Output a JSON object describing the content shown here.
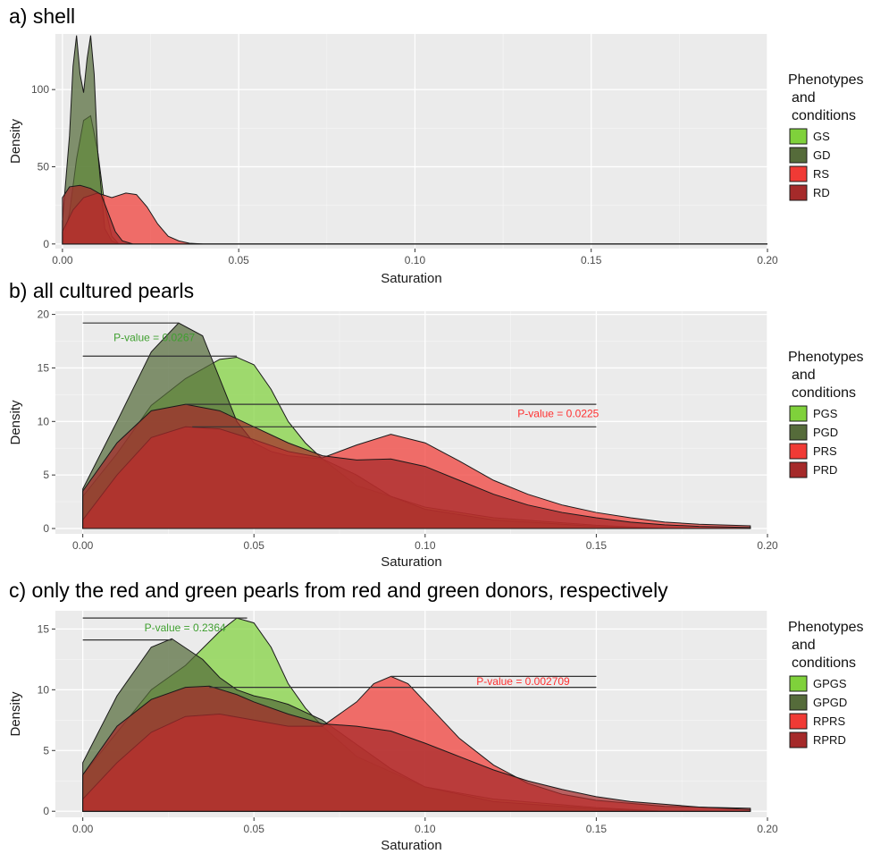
{
  "colors": {
    "panel_bg": "#ebebeb",
    "grid_major": "#ffffff",
    "green_light": "#7fd13b",
    "green_dark": "#556b3a",
    "red_light": "#f03a35",
    "red_dark": "#a52a2a",
    "pval_green": "#3f9f2f",
    "pval_red": "#ff3030"
  },
  "chart_data": [
    {
      "type": "area",
      "title": "a) shell",
      "xlabel": "Saturation",
      "ylabel": "Density",
      "xlim": [
        -0.002,
        0.2
      ],
      "ylim": [
        -3,
        136
      ],
      "xticks": [
        0.0,
        0.05,
        0.1,
        0.15,
        0.2
      ],
      "xtick_labels": [
        "0.00",
        "0.05",
        "0.10",
        "0.15",
        "0.20"
      ],
      "yticks": [
        0,
        50,
        100
      ],
      "ytick_labels": [
        "0",
        "50",
        "100"
      ],
      "legend": {
        "title": [
          "Phenotypes",
          "and",
          "conditions"
        ],
        "position": "right"
      },
      "series": [
        {
          "name": "GS",
          "color": "green_light",
          "x": [
            0,
            0.002,
            0.004,
            0.006,
            0.008,
            0.01,
            0.012,
            0.014,
            0.016,
            0.018,
            0.02
          ],
          "y": [
            0,
            20,
            55,
            80,
            83,
            60,
            25,
            5,
            0,
            0,
            0
          ]
        },
        {
          "name": "GD",
          "color": "green_dark",
          "x": [
            0,
            0.002,
            0.003,
            0.004,
            0.005,
            0.006,
            0.007,
            0.008,
            0.009,
            0.01,
            0.012,
            0.014,
            0.016
          ],
          "y": [
            15,
            70,
            115,
            135,
            110,
            98,
            120,
            135,
            110,
            60,
            10,
            2,
            0
          ]
        },
        {
          "name": "RS",
          "color": "red_light",
          "x": [
            0,
            0.003,
            0.006,
            0.01,
            0.014,
            0.018,
            0.021,
            0.024,
            0.027,
            0.03,
            0.033,
            0.036,
            0.04
          ],
          "y": [
            8,
            22,
            30,
            33,
            30,
            33,
            32,
            24,
            13,
            5,
            2,
            0.5,
            0
          ]
        },
        {
          "name": "RD",
          "color": "red_dark",
          "x": [
            0,
            0.002,
            0.005,
            0.008,
            0.011,
            0.013,
            0.015,
            0.017,
            0.02
          ],
          "y": [
            30,
            37,
            38,
            36,
            32,
            20,
            8,
            2,
            0
          ]
        }
      ],
      "annotations": []
    },
    {
      "type": "area",
      "title": "b) all cultured pearls",
      "xlabel": "Saturation",
      "ylabel": "Density",
      "xlim": [
        -0.008,
        0.2
      ],
      "ylim": [
        -0.5,
        20.3
      ],
      "xticks": [
        0.0,
        0.05,
        0.1,
        0.15,
        0.2
      ],
      "xtick_labels": [
        "0.00",
        "0.05",
        "0.10",
        "0.15",
        "0.20"
      ],
      "yticks": [
        0,
        5,
        10,
        15,
        20
      ],
      "ytick_labels": [
        "0",
        "5",
        "10",
        "15",
        "20"
      ],
      "legend": {
        "title": [
          "Phenotypes",
          "and",
          "conditions"
        ],
        "position": "right"
      },
      "series": [
        {
          "name": "PGS",
          "color": "green_light",
          "x": [
            0,
            0.01,
            0.02,
            0.03,
            0.04,
            0.045,
            0.05,
            0.055,
            0.06,
            0.065,
            0.07,
            0.08,
            0.1,
            0.12,
            0.15,
            0.17
          ],
          "y": [
            3,
            7,
            11.5,
            14,
            15.8,
            16,
            15.3,
            13,
            10,
            8,
            6.5,
            4,
            2,
            1,
            0.3,
            0
          ]
        },
        {
          "name": "PGD",
          "color": "green_dark",
          "x": [
            0,
            0.01,
            0.02,
            0.028,
            0.035,
            0.04,
            0.045,
            0.05,
            0.055,
            0.06,
            0.07,
            0.08,
            0.09,
            0.1,
            0.12,
            0.15,
            0.17
          ],
          "y": [
            3.7,
            10,
            16.5,
            19.2,
            18,
            14,
            10,
            8,
            7.2,
            6.8,
            6.5,
            5,
            3,
            1.8,
            0.8,
            0.2,
            0
          ]
        },
        {
          "name": "PRS",
          "color": "red_light",
          "x": [
            0,
            0.01,
            0.02,
            0.03,
            0.04,
            0.05,
            0.06,
            0.07,
            0.08,
            0.09,
            0.1,
            0.11,
            0.12,
            0.13,
            0.14,
            0.15,
            0.16,
            0.17,
            0.18,
            0.195
          ],
          "y": [
            0.8,
            5,
            8.5,
            9.5,
            9.3,
            8.3,
            7.2,
            6.6,
            7.8,
            8.8,
            8,
            6.3,
            4.5,
            3.2,
            2.2,
            1.5,
            1,
            0.6,
            0.4,
            0.25
          ]
        },
        {
          "name": "PRD",
          "color": "red_dark",
          "x": [
            0,
            0.01,
            0.02,
            0.03,
            0.04,
            0.05,
            0.06,
            0.07,
            0.08,
            0.09,
            0.1,
            0.11,
            0.12,
            0.13,
            0.14,
            0.15,
            0.16,
            0.17,
            0.18,
            0.195
          ],
          "y": [
            3.5,
            8,
            11,
            11.6,
            11,
            9.5,
            8,
            6.8,
            6.4,
            6.5,
            5.8,
            4.5,
            3.2,
            2.2,
            1.5,
            1,
            0.6,
            0.35,
            0.2,
            0.1
          ]
        }
      ],
      "annotations": [
        {
          "text": "P-value = 0.0267",
          "color": "pval_green",
          "x": 0.009,
          "y": 17.5
        },
        {
          "text": "P-value = 0.0225",
          "color": "pval_red",
          "x": 0.127,
          "y": 10.4
        }
      ],
      "hlines": [
        {
          "y": 19.2,
          "x1": 0,
          "x2": 0.028
        },
        {
          "y": 16.1,
          "x1": 0,
          "x2": 0.045
        },
        {
          "y": 11.6,
          "x1": 0.03,
          "x2": 0.15
        },
        {
          "y": 9.5,
          "x1": 0.032,
          "x2": 0.15
        }
      ]
    },
    {
      "type": "area",
      "title": "c) only the red and green pearls from red and green donors, respectively",
      "xlabel": "Saturation",
      "ylabel": "Density",
      "xlim": [
        -0.008,
        0.2
      ],
      "ylim": [
        -0.5,
        16.5
      ],
      "xticks": [
        0.0,
        0.05,
        0.1,
        0.15,
        0.2
      ],
      "xtick_labels": [
        "0.00",
        "0.05",
        "0.10",
        "0.15",
        "0.20"
      ],
      "yticks": [
        0,
        5,
        10,
        15
      ],
      "ytick_labels": [
        "0",
        "5",
        "10",
        "15"
      ],
      "legend": {
        "title": [
          "Phenotypes",
          "and",
          "conditions"
        ],
        "position": "right"
      },
      "series": [
        {
          "name": "GPGS",
          "color": "green_light",
          "x": [
            0,
            0.01,
            0.02,
            0.03,
            0.04,
            0.045,
            0.05,
            0.055,
            0.06,
            0.065,
            0.07,
            0.08,
            0.1,
            0.12,
            0.15,
            0.17
          ],
          "y": [
            3,
            6.5,
            10,
            12,
            14.8,
            15.9,
            15.5,
            13.5,
            10.5,
            8.5,
            7,
            4.5,
            2,
            1,
            0.3,
            0
          ]
        },
        {
          "name": "GPGD",
          "color": "green_dark",
          "x": [
            0,
            0.01,
            0.02,
            0.026,
            0.035,
            0.04,
            0.045,
            0.05,
            0.055,
            0.06,
            0.07,
            0.08,
            0.09,
            0.1,
            0.12,
            0.15,
            0.17
          ],
          "y": [
            4,
            9.5,
            13.5,
            14.2,
            12.5,
            11,
            10,
            9.5,
            9.2,
            8.8,
            7.5,
            5.5,
            3.5,
            2,
            0.8,
            0.2,
            0
          ]
        },
        {
          "name": "RPRS",
          "color": "red_light",
          "x": [
            0,
            0.01,
            0.02,
            0.03,
            0.04,
            0.05,
            0.06,
            0.07,
            0.08,
            0.085,
            0.09,
            0.095,
            0.1,
            0.11,
            0.12,
            0.13,
            0.14,
            0.15,
            0.17,
            0.195
          ],
          "y": [
            1,
            4,
            6.5,
            7.8,
            8,
            7.5,
            7,
            7,
            9,
            10.5,
            11.1,
            10.5,
            9,
            6,
            3.8,
            2.3,
            1.4,
            0.9,
            0.4,
            0.25
          ]
        },
        {
          "name": "RPRD",
          "color": "red_dark",
          "x": [
            0,
            0.01,
            0.02,
            0.03,
            0.037,
            0.045,
            0.05,
            0.06,
            0.07,
            0.08,
            0.09,
            0.1,
            0.11,
            0.12,
            0.13,
            0.14,
            0.15,
            0.16,
            0.18,
            0.195
          ],
          "y": [
            3,
            7,
            9.2,
            10.2,
            10.3,
            9.6,
            9,
            8,
            7.2,
            7,
            6.6,
            5.6,
            4.5,
            3.4,
            2.5,
            1.8,
            1.2,
            0.8,
            0.35,
            0.15
          ]
        }
      ],
      "annotations": [
        {
          "text": "P-value = 0.2364",
          "color": "pval_green",
          "x": 0.018,
          "y": 14.8
        },
        {
          "text": "P-value = 0.002709",
          "color": "pval_red",
          "x": 0.115,
          "y": 10.4
        }
      ],
      "hlines": [
        {
          "y": 15.9,
          "x1": 0,
          "x2": 0.048
        },
        {
          "y": 14.1,
          "x1": 0,
          "x2": 0.026
        },
        {
          "y": 11.1,
          "x1": 0.09,
          "x2": 0.15
        },
        {
          "y": 10.2,
          "x1": 0.037,
          "x2": 0.15
        }
      ]
    }
  ]
}
